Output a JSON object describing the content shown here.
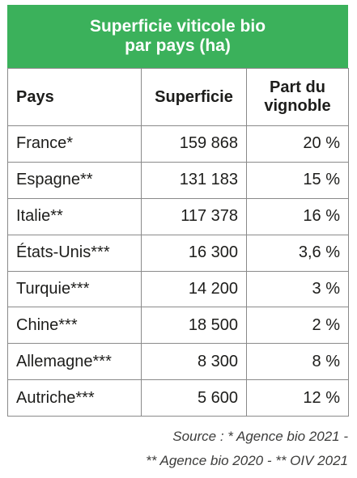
{
  "title": {
    "line1": "Superficie viticole bio",
    "line2": "par pays (ha)"
  },
  "headers": {
    "pays": "Pays",
    "superficie": "Superficie",
    "part_line1": "Part du",
    "part_line2": "vignoble"
  },
  "rows": [
    {
      "pays": "France*",
      "superficie": "159 868",
      "part": "20 %"
    },
    {
      "pays": "Espagne**",
      "superficie": "131 183",
      "part": "15 %"
    },
    {
      "pays": "Italie**",
      "superficie": "117 378",
      "part": "16 %"
    },
    {
      "pays": "États-Unis***",
      "superficie": "16 300",
      "part": "3,6 %"
    },
    {
      "pays": "Turquie***",
      "superficie": "14 200",
      "part": "3 %"
    },
    {
      "pays": "Chine***",
      "superficie": "18 500",
      "part": "2 %"
    },
    {
      "pays": "Allemagne***",
      "superficie": "8 300",
      "part": "8 %"
    },
    {
      "pays": "Autriche***",
      "superficie": "5 600",
      "part": "12 %"
    }
  ],
  "source": {
    "line1": "Source : * Agence bio 2021 -",
    "line2": "** Agence bio 2020 - ** OIV 2021"
  },
  "colors": {
    "header_background": "#3bb15b",
    "header_text": "#ffffff",
    "border": "#8a8a8a"
  }
}
